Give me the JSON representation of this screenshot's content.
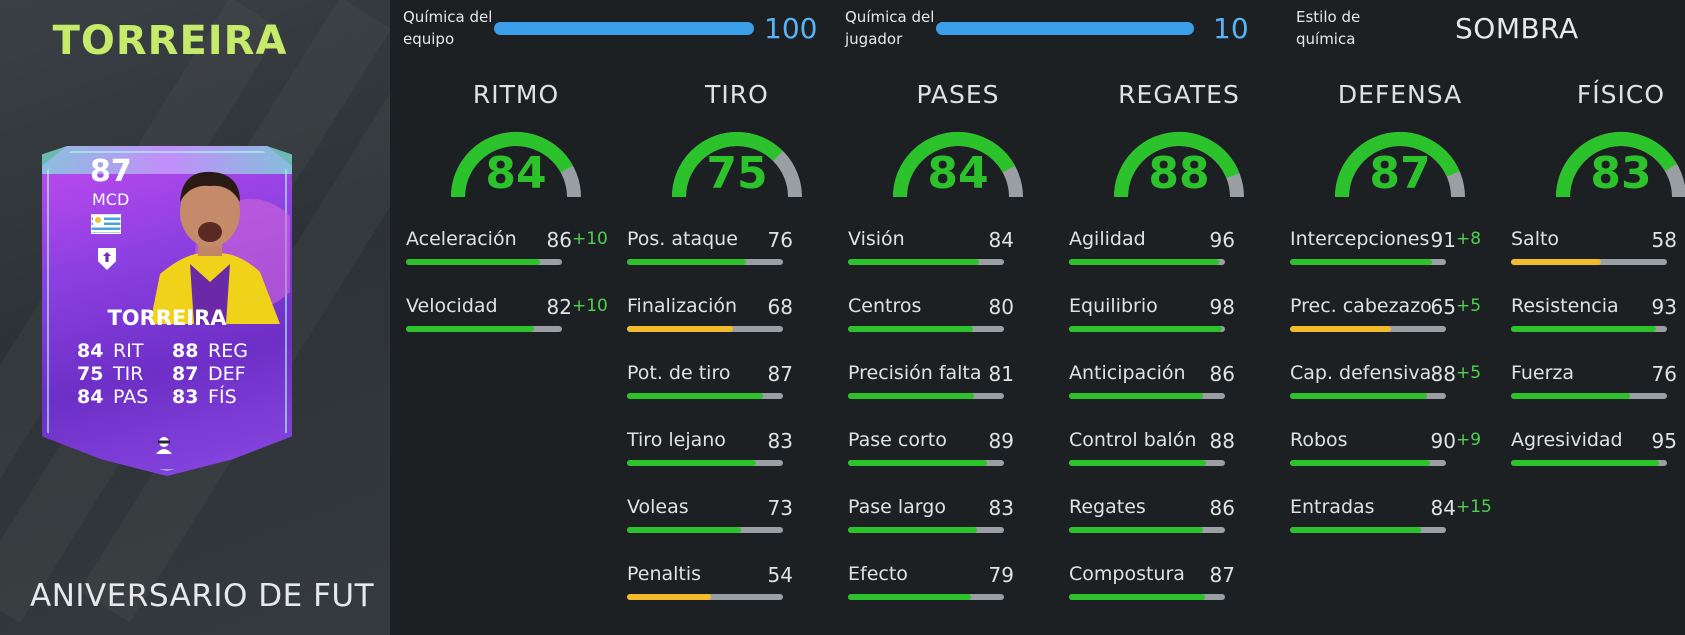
{
  "player": {
    "name": "TORREIRA",
    "card_type": "ANIVERSARIO DE FUT",
    "card": {
      "rating": "87",
      "position": "MCD",
      "name": "TORREIRA",
      "stats": [
        {
          "value": "84",
          "label": "RIT"
        },
        {
          "value": "88",
          "label": "REG"
        },
        {
          "value": "75",
          "label": "TIR"
        },
        {
          "value": "87",
          "label": "DEF"
        },
        {
          "value": "84",
          "label": "PAS"
        },
        {
          "value": "83",
          "label": "FÍS"
        }
      ],
      "icons": {
        "flag": "uruguay-flag-icon",
        "club": "fiorentina-badge-icon",
        "chem_style": "shadow-chem-style-icon"
      }
    }
  },
  "chemistry": {
    "team_label": "Química del equipo",
    "team_value": "100",
    "player_label": "Química del jugador",
    "player_value": "10",
    "style_label": "Estilo de química",
    "style_value": "SOMBRA"
  },
  "colors": {
    "high": "#2bc22b",
    "mid": "#f2bb2c",
    "track": "#9a9fa3",
    "chem_bar": "#3a9fe8",
    "name_accent": "#c6ea6a"
  },
  "categories": [
    {
      "title": "RITMO",
      "value": 84,
      "attributes": [
        {
          "name": "Aceleración",
          "value": 86,
          "bonus": "+10"
        },
        {
          "name": "Velocidad",
          "value": 82,
          "bonus": "+10"
        }
      ]
    },
    {
      "title": "TIRO",
      "value": 75,
      "attributes": [
        {
          "name": "Pos. ataque",
          "value": 76,
          "bonus": ""
        },
        {
          "name": "Finalización",
          "value": 68,
          "bonus": ""
        },
        {
          "name": "Pot. de tiro",
          "value": 87,
          "bonus": ""
        },
        {
          "name": "Tiro lejano",
          "value": 83,
          "bonus": ""
        },
        {
          "name": "Voleas",
          "value": 73,
          "bonus": ""
        },
        {
          "name": "Penaltis",
          "value": 54,
          "bonus": ""
        }
      ]
    },
    {
      "title": "PASES",
      "value": 84,
      "attributes": [
        {
          "name": "Visión",
          "value": 84,
          "bonus": ""
        },
        {
          "name": "Centros",
          "value": 80,
          "bonus": ""
        },
        {
          "name": "Precisión falta",
          "value": 81,
          "bonus": ""
        },
        {
          "name": "Pase corto",
          "value": 89,
          "bonus": ""
        },
        {
          "name": "Pase largo",
          "value": 83,
          "bonus": ""
        },
        {
          "name": "Efecto",
          "value": 79,
          "bonus": ""
        }
      ]
    },
    {
      "title": "REGATES",
      "value": 88,
      "attributes": [
        {
          "name": "Agilidad",
          "value": 96,
          "bonus": ""
        },
        {
          "name": "Equilibrio",
          "value": 98,
          "bonus": ""
        },
        {
          "name": "Anticipación",
          "value": 86,
          "bonus": ""
        },
        {
          "name": "Control balón",
          "value": 88,
          "bonus": ""
        },
        {
          "name": "Regates",
          "value": 86,
          "bonus": ""
        },
        {
          "name": "Compostura",
          "value": 87,
          "bonus": ""
        }
      ]
    },
    {
      "title": "DEFENSA",
      "value": 87,
      "attributes": [
        {
          "name": "Intercepciones",
          "value": 91,
          "bonus": "+8"
        },
        {
          "name": "Prec. cabezazo",
          "value": 65,
          "bonus": "+5"
        },
        {
          "name": "Cap. defensiva",
          "value": 88,
          "bonus": "+5"
        },
        {
          "name": "Robos",
          "value": 90,
          "bonus": "+9"
        },
        {
          "name": "Entradas",
          "value": 84,
          "bonus": "+15"
        }
      ]
    },
    {
      "title": "FÍSICO",
      "value": 83,
      "attributes": [
        {
          "name": "Salto",
          "value": 58,
          "bonus": ""
        },
        {
          "name": "Resistencia",
          "value": 93,
          "bonus": ""
        },
        {
          "name": "Fuerza",
          "value": 76,
          "bonus": ""
        },
        {
          "name": "Agresividad",
          "value": 95,
          "bonus": ""
        }
      ]
    }
  ]
}
